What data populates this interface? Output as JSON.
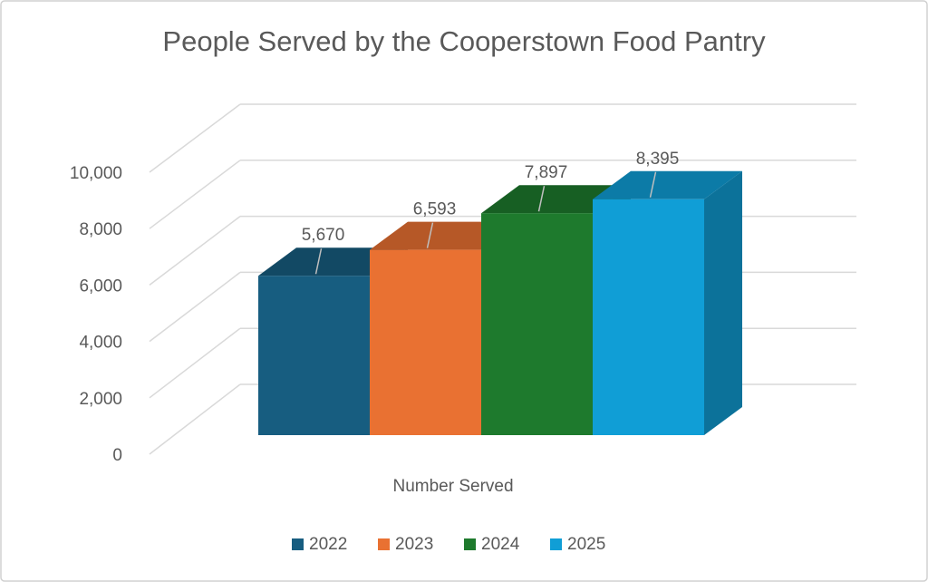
{
  "chart_data": {
    "type": "bar3d",
    "title": "People Served by the Cooperstown Food Pantry",
    "categories": [
      "Number Served"
    ],
    "series": [
      {
        "name": "2022",
        "color": "#175d80",
        "values": [
          5670
        ],
        "value_labels": [
          "5,670"
        ]
      },
      {
        "name": "2023",
        "color": "#e97132",
        "values": [
          6593
        ],
        "value_labels": [
          "6,593"
        ]
      },
      {
        "name": "2024",
        "color": "#1e7a2d",
        "values": [
          7897
        ],
        "value_labels": [
          "7,897"
        ]
      },
      {
        "name": "2025",
        "color": "#109ed6",
        "values": [
          8395
        ],
        "value_labels": [
          "8,395"
        ]
      }
    ],
    "ylim": [
      0,
      10000
    ],
    "yticks": [
      {
        "value": 0,
        "label": "0"
      },
      {
        "value": 2000,
        "label": "2,000"
      },
      {
        "value": 4000,
        "label": "4,000"
      },
      {
        "value": 6000,
        "label": "6,000"
      },
      {
        "value": 8000,
        "label": "8,000"
      },
      {
        "value": 10000,
        "label": "10,000"
      }
    ],
    "grid": true,
    "legend": "bottom"
  }
}
